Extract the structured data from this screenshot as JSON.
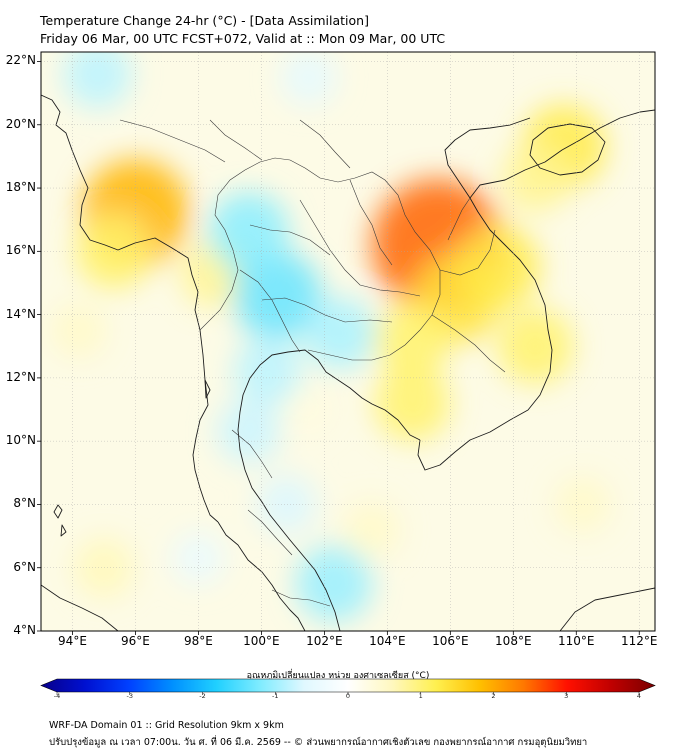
{
  "header": {
    "title_line1": "Temperature Change 24-hr (°C) - [Data Assimilation]",
    "title_line2": "Friday 06 Mar, 00 UTC FCST+072, Valid at :: Mon 09 Mar, 00 UTC"
  },
  "map": {
    "lat_labels": [
      "22°N",
      "20°N",
      "18°N",
      "16°N",
      "14°N",
      "12°N",
      "10°N",
      "8°N",
      "6°N",
      "4°N"
    ],
    "lon_labels": [
      "94°E",
      "96°E",
      "98°E",
      "100°E",
      "102°E",
      "104°E",
      "106°E",
      "108°E",
      "110°E",
      "112°E"
    ],
    "lat_range": [
      4,
      22.3
    ],
    "lon_range": [
      93,
      112.5
    ],
    "field_blobs": [
      {
        "lon": 96.0,
        "lat": 17.2,
        "value": 1.8
      },
      {
        "lon": 95.3,
        "lat": 16.0,
        "value": 1.0
      },
      {
        "lon": 105.6,
        "lat": 16.2,
        "value": 2.4
      },
      {
        "lon": 106.2,
        "lat": 14.5,
        "value": 1.3
      },
      {
        "lon": 107.5,
        "lat": 15.5,
        "value": 1.2
      },
      {
        "lon": 104.8,
        "lat": 13.2,
        "value": 1.0
      },
      {
        "lon": 104.8,
        "lat": 11.2,
        "value": 1.0
      },
      {
        "lon": 109.6,
        "lat": 19.3,
        "value": 1.2
      },
      {
        "lon": 108.7,
        "lat": 18.3,
        "value": 0.8
      },
      {
        "lon": 108.7,
        "lat": 13.0,
        "value": 1.0
      },
      {
        "lon": 98.5,
        "lat": 15.3,
        "value": 0.8
      },
      {
        "lon": 94.2,
        "lat": 13.5,
        "value": 0.5
      },
      {
        "lon": 95.0,
        "lat": 6.0,
        "value": 0.6
      },
      {
        "lon": 110.2,
        "lat": 8.0,
        "value": 0.5
      },
      {
        "lon": 103.5,
        "lat": 7.2,
        "value": 0.5
      },
      {
        "lon": 101.5,
        "lat": 11.0,
        "value": 0.3
      },
      {
        "lon": 94.8,
        "lat": 21.6,
        "value": -0.8
      },
      {
        "lon": 100.5,
        "lat": 14.6,
        "value": -1.3
      },
      {
        "lon": 100.2,
        "lat": 12.2,
        "value": -0.8
      },
      {
        "lon": 99.6,
        "lat": 16.6,
        "value": -1.1
      },
      {
        "lon": 102.5,
        "lat": 13.4,
        "value": -0.9
      },
      {
        "lon": 99.6,
        "lat": 10.3,
        "value": -0.7
      },
      {
        "lon": 100.8,
        "lat": 8.0,
        "value": -0.6
      },
      {
        "lon": 102.3,
        "lat": 5.5,
        "value": -1.0
      },
      {
        "lon": 101.5,
        "lat": 21.5,
        "value": -0.5
      },
      {
        "lon": 98.0,
        "lat": 6.3,
        "value": -0.4
      }
    ]
  },
  "colorbar": {
    "title": "อุณหภูมิเปลี่ยนแปลง หน่วย องศาเซลเซียส (°C)",
    "ticks": [
      "-4",
      "-3",
      "-2",
      "-1",
      "0",
      "1",
      "2",
      "3",
      "4"
    ],
    "min": -4,
    "max": 4,
    "colors": [
      "#08008a",
      "#0010d0",
      "#0040ff",
      "#0090ff",
      "#20d0ff",
      "#80ecff",
      "#e0f8ff",
      "#ffffff",
      "#fff8c0",
      "#fff050",
      "#ffc000",
      "#ff7800",
      "#ff1000",
      "#c00000",
      "#7a0000"
    ]
  },
  "footer": {
    "line1": "WRF-DA Domain 01 :: Grid Resolution 9km x 9km",
    "line2": "ปรับปรุงข้อมูล ณ เวลา 07:00น. วัน ศ. ที่ 06 มี.ค. 2569 -- © ส่วนพยากรณ์อากาศเชิงตัวเลข กองพยากรณ์อากาศ กรมอุตุนิยมวิทยา"
  }
}
